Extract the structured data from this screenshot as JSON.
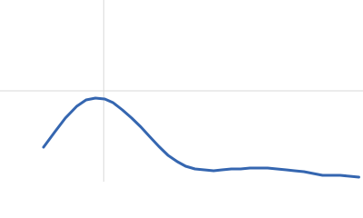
{
  "chart_data": {
    "type": "line",
    "x": [
      0.042,
      0.053,
      0.063,
      0.074,
      0.083,
      0.092,
      0.101,
      0.109,
      0.118,
      0.127,
      0.136,
      0.144,
      0.153,
      0.162,
      0.171,
      0.179,
      0.188,
      0.197,
      0.206,
      0.214,
      0.223,
      0.232,
      0.241,
      0.249,
      0.258,
      0.267,
      0.276,
      0.284,
      0.293,
      0.302,
      0.311,
      0.319,
      0.328,
      0.337,
      0.346
    ],
    "series": [
      {
        "color": "#3566b0",
        "values": [
          0.38,
          0.55,
          0.7,
          0.83,
          0.9,
          0.92,
          0.91,
          0.87,
          0.79,
          0.7,
          0.6,
          0.5,
          0.39,
          0.29,
          0.22,
          0.17,
          0.14,
          0.13,
          0.12,
          0.13,
          0.14,
          0.14,
          0.15,
          0.15,
          0.15,
          0.14,
          0.13,
          0.12,
          0.11,
          0.09,
          0.07,
          0.07,
          0.07,
          0.06,
          0.05
        ]
      }
    ],
    "xlim": [
      0,
      0.35
    ],
    "ylim": [
      0,
      2
    ],
    "xticks": [
      0.1
    ],
    "yticks": [
      1
    ],
    "grid": true
  }
}
